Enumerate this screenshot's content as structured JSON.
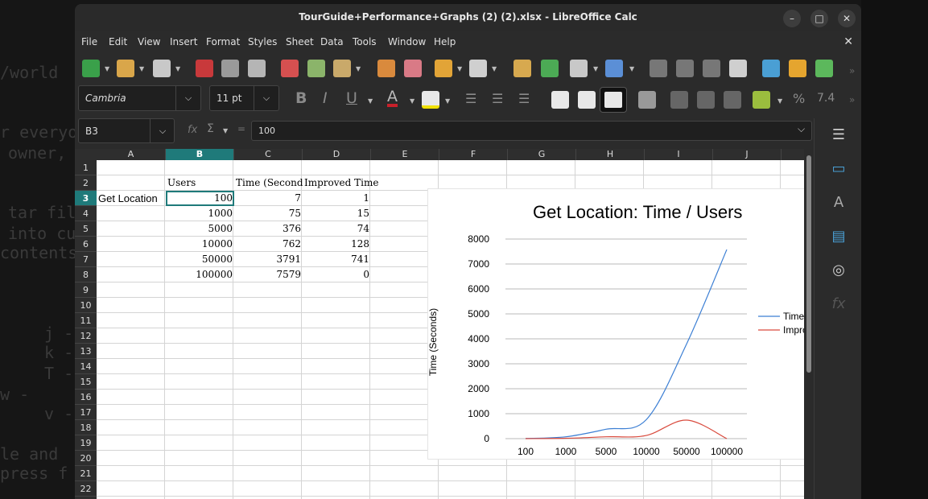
{
  "background_terminal": [
    "/world",
    "r everyo",
    "owner,",
    "tar fil",
    "into cu",
    "contents",
    "j -",
    "k -",
    "T -",
    "w -",
    "v -",
    "le and",
    "press f"
  ],
  "window": {
    "title": "TourGuide+Performance+Graphs (2) (2).xlsx - LibreOffice Calc",
    "controls": {
      "minimize": "–",
      "maximize": "□",
      "close": "✕"
    }
  },
  "menubar": {
    "items": [
      "File",
      "Edit",
      "View",
      "Insert",
      "Format",
      "Styles",
      "Sheet",
      "Data",
      "Tools",
      "Window",
      "Help"
    ],
    "close_document": "✕"
  },
  "format_toolbar": {
    "font_name": "Cambria",
    "font_size": "11 pt"
  },
  "formula_bar": {
    "name_box": "B3",
    "fx": "fx",
    "sigma": "Σ",
    "equals": "=",
    "formula": "100"
  },
  "columns": [
    "A",
    "B",
    "C",
    "D",
    "E",
    "F",
    "G",
    "H",
    "I",
    "J"
  ],
  "selected_column": "B",
  "rows": [
    "1",
    "2",
    "3",
    "4",
    "5",
    "6",
    "7",
    "8",
    "9",
    "10",
    "11",
    "12",
    "13",
    "14",
    "15",
    "16",
    "17",
    "18",
    "19",
    "20",
    "21",
    "22"
  ],
  "selected_row": "3",
  "sheet": {
    "row2": {
      "b": "Users",
      "c": "Time (Seconds)",
      "d": "Improved Time"
    },
    "row3": {
      "a": "Get Location",
      "b": "100",
      "c": "7",
      "d": "1"
    },
    "row4": {
      "b": "1000",
      "c": "75",
      "d": "15"
    },
    "row5": {
      "b": "5000",
      "c": "376",
      "d": "74"
    },
    "row6": {
      "b": "10000",
      "c": "762",
      "d": "128"
    },
    "row7": {
      "b": "50000",
      "c": "3791",
      "d": "741"
    },
    "row8": {
      "b": "100000",
      "c": "7579",
      "d": "0"
    }
  },
  "chart_data": {
    "type": "line",
    "title": "Get Location: Time / Users",
    "xlabel": "",
    "ylabel": "Time (Seconds)",
    "categories": [
      "100",
      "1000",
      "5000",
      "10000",
      "50000",
      "100000"
    ],
    "series": [
      {
        "name": "Time (Se",
        "values": [
          7,
          75,
          376,
          762,
          3791,
          7579
        ],
        "color": "#3c7fd4"
      },
      {
        "name": "Improved",
        "values": [
          1,
          15,
          74,
          128,
          741,
          0
        ],
        "color": "#d94a3d"
      }
    ],
    "yticks": [
      "0",
      "1000",
      "2000",
      "3000",
      "4000",
      "5000",
      "6000",
      "7000",
      "8000"
    ],
    "ylim": [
      0,
      8000
    ],
    "grid": true,
    "legend": "right"
  }
}
